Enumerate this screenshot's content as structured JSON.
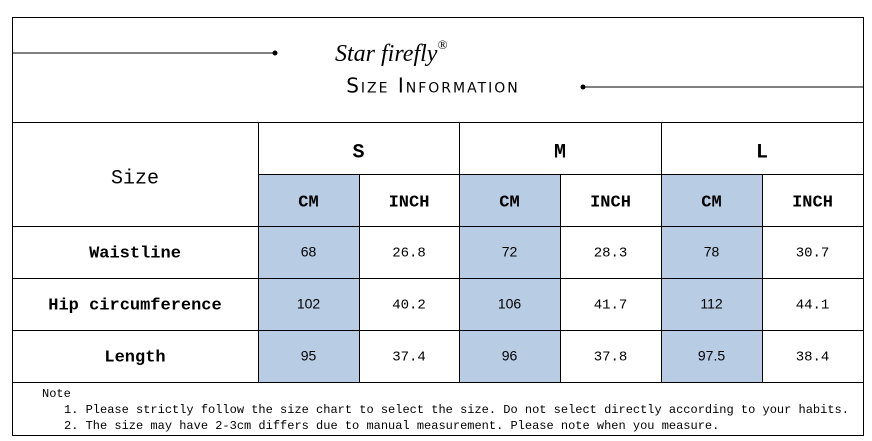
{
  "header": {
    "brand": "Star firefly",
    "registered": "®",
    "title": "Size Information"
  },
  "table": {
    "corner": "Size",
    "sizes": [
      "S",
      "M",
      "L"
    ],
    "units": [
      "CM",
      "INCH"
    ],
    "rows": [
      {
        "label": "Waistline",
        "values": [
          68,
          26.8,
          72,
          28.3,
          78,
          30.7
        ]
      },
      {
        "label": "Hip circumference",
        "values": [
          102,
          40.2,
          106,
          41.7,
          112,
          44.1
        ]
      },
      {
        "label": "Length",
        "values": [
          95,
          37.4,
          96,
          37.8,
          97.5,
          38.4
        ]
      }
    ]
  },
  "note": {
    "title": "Note",
    "items": [
      "1. Please strictly follow the size chart to select the size. Do not select directly according to your habits.",
      "2. The size may have 2-3cm differs due to manual measurement. Please note when you measure."
    ]
  }
}
